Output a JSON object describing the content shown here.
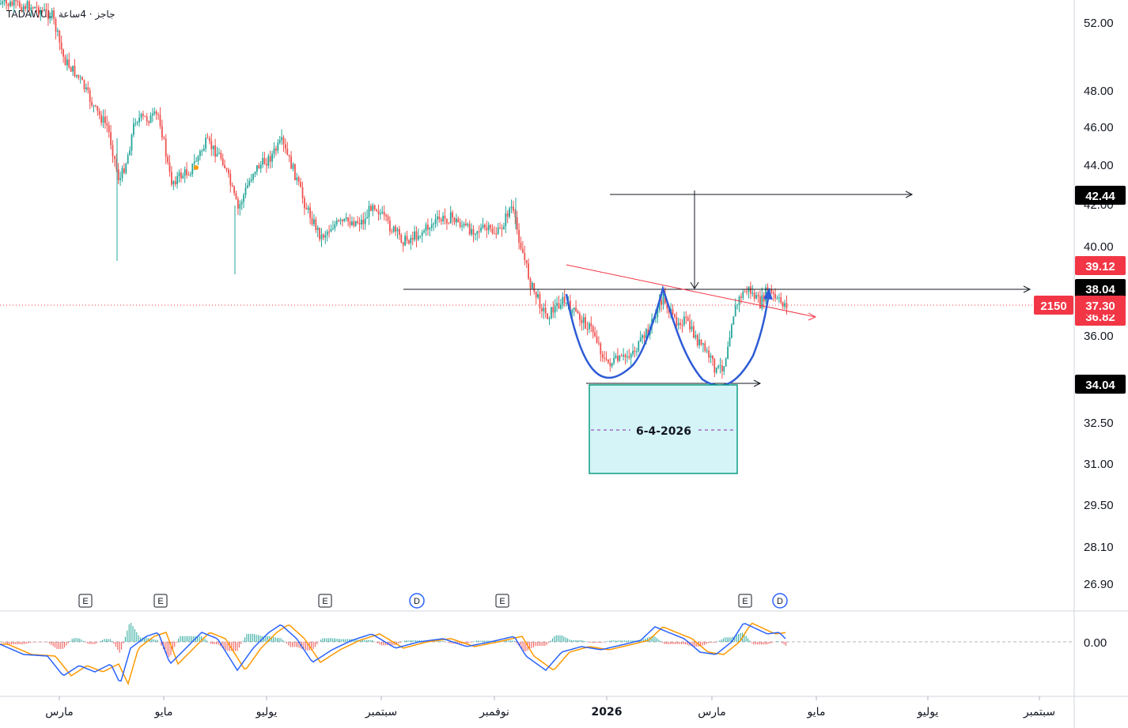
{
  "header": {
    "exchange": "TADAWUL",
    "meta": "جاجز · 4ساعة"
  },
  "price_axis": {
    "ticks": [
      "52.00",
      "48.00",
      "46.00",
      "44.00",
      "42.00",
      "40.00",
      "36.00",
      "32.50",
      "31.00",
      "29.50",
      "28.10",
      "26.90"
    ],
    "badges": [
      {
        "label": "42.44",
        "color": "#000000"
      },
      {
        "label": "39.12",
        "color": "#f23645"
      },
      {
        "label": "38.04",
        "color": "#000000"
      },
      {
        "label": "36.82",
        "color": "#f23645"
      },
      {
        "label": "37.30",
        "color": "#f23645"
      },
      {
        "label": "34.04",
        "color": "#000000"
      }
    ],
    "symbol_badge": {
      "label": "2150",
      "color": "#f23645"
    }
  },
  "time_axis": {
    "labels": [
      "مارس",
      "مايو",
      "يوليو",
      "سبتمبر",
      "نوفمبر",
      "2026",
      "مارس",
      "مايو",
      "يوليو",
      "سبتمبر"
    ]
  },
  "events": [
    {
      "type": "E",
      "color": "#131722"
    },
    {
      "type": "E",
      "color": "#131722"
    },
    {
      "type": "E",
      "color": "#131722"
    },
    {
      "type": "D",
      "color": "#2962ff"
    },
    {
      "type": "E",
      "color": "#131722"
    },
    {
      "type": "E",
      "color": "#131722"
    },
    {
      "type": "D",
      "color": "#2962ff"
    }
  ],
  "annotation": {
    "label": "6-4-2026"
  },
  "macd": {
    "zero_label": "0.00"
  },
  "colors": {
    "up": "#26a69a",
    "down": "#ef5350",
    "pattern": "#2e5bd6",
    "trend": "#f23645",
    "box_fill": "#d4f4f7",
    "box_border": "#0d9e84",
    "macd": "#2962ff",
    "signal": "#ff9800"
  },
  "chart_data": {
    "type": "candlestick",
    "title": "",
    "xlabel": "",
    "ylabel": "",
    "x": [
      "مارس",
      "مايو",
      "يوليو",
      "سبتمبر",
      "نوفمبر",
      "2026",
      "مارس"
    ],
    "close": [
      46.5,
      43.4,
      43.0,
      41.0,
      40.5,
      37.5,
      37.3
    ],
    "ylim": [
      26.5,
      53
    ],
    "levels": {
      "target": 42.44,
      "neckline": 38.04,
      "last_price": 37.3,
      "support": 34.04,
      "high": 39.12,
      "low": 36.82
    },
    "pattern": "cup and handle / double bottom",
    "indicators": [
      "MACD"
    ],
    "grid": false
  }
}
